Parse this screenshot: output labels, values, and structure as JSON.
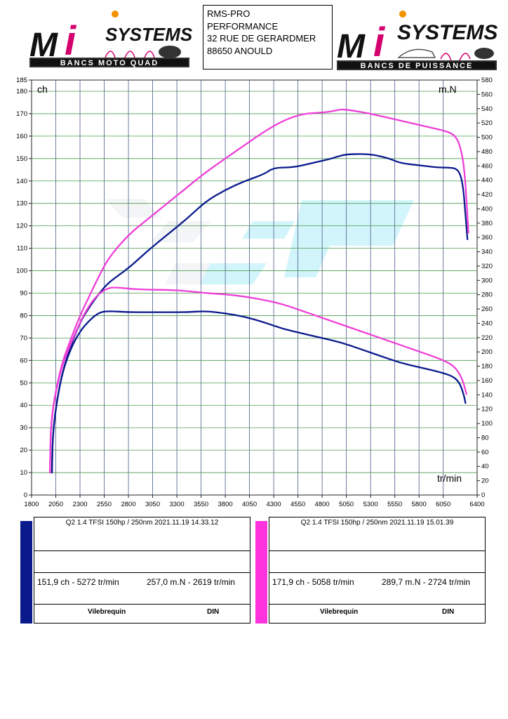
{
  "header": {
    "logo_left": {
      "brand": "SYSTEMS",
      "tagline": "BANCS MOTO QUAD"
    },
    "logo_right": {
      "brand": "SYSTEMS",
      "tagline": "BANCS DE PUISSANCE"
    },
    "address": [
      "RMS-PRO",
      "PERFORMANCE",
      "32 RUE DE GERARDMER",
      "88650 ANOULD"
    ]
  },
  "chart_data": {
    "type": "line",
    "axis_labels": {
      "left_unit": "ch",
      "right_unit": "m.N",
      "x_unit": "tr/min"
    },
    "x_ticks": [
      1800,
      2050,
      2300,
      2550,
      2800,
      3050,
      3300,
      3550,
      3800,
      4050,
      4300,
      4550,
      4800,
      5050,
      5300,
      5550,
      5800,
      6050,
      6400
    ],
    "xlim": [
      1800,
      6400
    ],
    "ylim_left": [
      0,
      185
    ],
    "ylim_right": [
      0,
      580
    ],
    "y_ticks_left": [
      0,
      10,
      20,
      30,
      40,
      50,
      60,
      70,
      80,
      90,
      100,
      110,
      120,
      130,
      140,
      150,
      160,
      170,
      180,
      185
    ],
    "y_ticks_right": [
      0,
      20,
      40,
      60,
      80,
      100,
      120,
      140,
      160,
      180,
      200,
      220,
      240,
      260,
      280,
      300,
      320,
      340,
      360,
      380,
      400,
      420,
      440,
      460,
      480,
      500,
      520,
      540,
      560,
      580
    ],
    "grid": true,
    "series": [
      {
        "color": "#0a1a8c",
        "axis": "left",
        "points": [
          [
            2010,
            10
          ],
          [
            2020,
            30
          ],
          [
            2100,
            52
          ],
          [
            2200,
            66
          ],
          [
            2300,
            77
          ],
          [
            2400,
            84
          ],
          [
            2500,
            90
          ],
          [
            2600,
            95
          ],
          [
            2800,
            101
          ],
          [
            3000,
            109
          ],
          [
            3200,
            116
          ],
          [
            3400,
            123
          ],
          [
            3600,
            131
          ],
          [
            3800,
            136
          ],
          [
            4000,
            140
          ],
          [
            4200,
            143
          ],
          [
            4300,
            146
          ],
          [
            4500,
            146
          ],
          [
            4700,
            148
          ],
          [
            4900,
            150
          ],
          [
            5000,
            151.5
          ],
          [
            5100,
            152
          ],
          [
            5300,
            152
          ],
          [
            5500,
            150
          ],
          [
            5600,
            148
          ],
          [
            5800,
            147
          ],
          [
            6000,
            146
          ],
          [
            6100,
            146
          ],
          [
            6200,
            145.5
          ],
          [
            6250,
            140
          ],
          [
            6280,
            125
          ],
          [
            6300,
            114
          ]
        ]
      },
      {
        "color": "#ee3fd8",
        "axis": "left",
        "points": [
          [
            1990,
            10
          ],
          [
            2000,
            35
          ],
          [
            2100,
            57
          ],
          [
            2200,
            69
          ],
          [
            2300,
            80
          ],
          [
            2400,
            89
          ],
          [
            2500,
            98
          ],
          [
            2600,
            106
          ],
          [
            2800,
            116
          ],
          [
            3000,
            123
          ],
          [
            3200,
            130
          ],
          [
            3400,
            137
          ],
          [
            3600,
            144
          ],
          [
            3800,
            150
          ],
          [
            4000,
            156
          ],
          [
            4200,
            162
          ],
          [
            4400,
            167
          ],
          [
            4600,
            170
          ],
          [
            4800,
            170.5
          ],
          [
            4900,
            171
          ],
          [
            5000,
            172
          ],
          [
            5100,
            171.5
          ],
          [
            5300,
            170
          ],
          [
            5500,
            168
          ],
          [
            5700,
            166
          ],
          [
            5900,
            164
          ],
          [
            6100,
            162
          ],
          [
            6180,
            160
          ],
          [
            6230,
            155
          ],
          [
            6270,
            145
          ],
          [
            6300,
            125
          ],
          [
            6310,
            117
          ]
        ]
      },
      {
        "color": "#0a1a8c",
        "axis": "left",
        "points": [
          [
            2010,
            10
          ],
          [
            2020,
            30
          ],
          [
            2100,
            52
          ],
          [
            2200,
            65
          ],
          [
            2300,
            73
          ],
          [
            2400,
            78
          ],
          [
            2500,
            81.5
          ],
          [
            2600,
            82
          ],
          [
            2800,
            81.5
          ],
          [
            3000,
            81.5
          ],
          [
            3200,
            81.5
          ],
          [
            3400,
            81.5
          ],
          [
            3600,
            82
          ],
          [
            3800,
            81
          ],
          [
            4000,
            79.5
          ],
          [
            4200,
            77
          ],
          [
            4400,
            74
          ],
          [
            4600,
            72
          ],
          [
            4800,
            70
          ],
          [
            5000,
            68
          ],
          [
            5200,
            65
          ],
          [
            5400,
            62
          ],
          [
            5600,
            59
          ],
          [
            5800,
            57
          ],
          [
            6000,
            55
          ],
          [
            6150,
            53
          ],
          [
            6220,
            50
          ],
          [
            6260,
            45
          ],
          [
            6280,
            41
          ]
        ]
      },
      {
        "color": "#ee3fd8",
        "axis": "left",
        "points": [
          [
            1990,
            10
          ],
          [
            2000,
            35
          ],
          [
            2100,
            56
          ],
          [
            2200,
            67
          ],
          [
            2300,
            77
          ],
          [
            2400,
            85
          ],
          [
            2500,
            90
          ],
          [
            2600,
            92.5
          ],
          [
            2700,
            92.5
          ],
          [
            2800,
            92
          ],
          [
            3000,
            91.5
          ],
          [
            3200,
            91.5
          ],
          [
            3400,
            91
          ],
          [
            3600,
            90
          ],
          [
            3800,
            89.5
          ],
          [
            4000,
            88.5
          ],
          [
            4200,
            87
          ],
          [
            4400,
            85
          ],
          [
            4600,
            82
          ],
          [
            4800,
            79
          ],
          [
            5000,
            76
          ],
          [
            5200,
            73
          ],
          [
            5400,
            70
          ],
          [
            5600,
            67
          ],
          [
            5800,
            64
          ],
          [
            6000,
            61
          ],
          [
            6150,
            58
          ],
          [
            6220,
            54
          ],
          [
            6260,
            50
          ],
          [
            6290,
            45
          ]
        ]
      }
    ]
  },
  "legend": [
    {
      "color": "#0a1a8c",
      "header": "Q2 1.4 TFSI 150hp / 250nm   2021.11.19 14.33.12",
      "power": "151,9 ch - 5272 tr/min",
      "torque": "257,0 m.N - 2619 tr/min",
      "foot_left": "Vilebrequin",
      "foot_right": "DIN"
    },
    {
      "color": "#ff33dd",
      "header": "Q2 1.4 TFSI 150hp / 250nm   2021.11.19 15.01.39",
      "power": "171,9 ch - 5058 tr/min",
      "torque": "289,7 m.N - 2724 tr/min",
      "foot_left": "Vilebrequin",
      "foot_right": "DIN"
    }
  ]
}
